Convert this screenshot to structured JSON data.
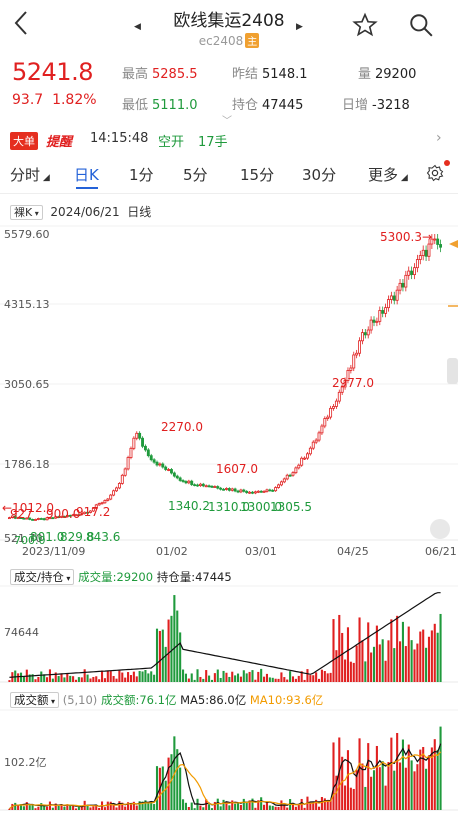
{
  "header": {
    "title": "欧线集运2408",
    "subtitle": "ec2408",
    "badge": "主"
  },
  "quote": {
    "price": "5241.8",
    "change": "93.7",
    "change_pct": "1.82%",
    "high_label": "最高",
    "high": "5285.5",
    "prev_settle_label": "昨结",
    "prev_settle": "5148.1",
    "volume_label": "量",
    "volume": "29200",
    "low_label": "最低",
    "low": "5111.0",
    "open_interest_label": "持仓",
    "open_interest": "47445",
    "daily_increase_label": "日增",
    "daily_increase": "-3218"
  },
  "alert": {
    "big_order": "大单",
    "remind": "提醒",
    "time": "14:15:48",
    "type": "空开",
    "qty": "17手"
  },
  "tabs": [
    "分时",
    "日K",
    "1分",
    "5分",
    "15分",
    "30分",
    "更多"
  ],
  "active_tab": "日K",
  "chart_info": {
    "bare_k": "裸K",
    "date": "2024/06/21",
    "period": "日线"
  },
  "price_axis": [
    "5579.60",
    "4315.13",
    "3050.65",
    "1786.18",
    "521.70"
  ],
  "date_axis": [
    "2023/11/09",
    "01/02",
    "03/01",
    "04/25",
    "06/21"
  ],
  "annotations": {
    "max": "5300.3",
    "p2270": "2270.0",
    "p1607": "1607.0",
    "p2977": "2977.0",
    "p1340": "1340.2",
    "p1310": "1310.0",
    "p1300": "1300.0",
    "p1305": "1305.5",
    "p1012": "1012.0",
    "p900": "900.0",
    "p917": "917.2",
    "p843": "843.6",
    "p829": "829.8",
    "p700": "700.0",
    "p801": "801.0",
    "p927": "927"
  },
  "vol_panel": {
    "selector": "成交/持仓",
    "vol_label": "成交量:29200",
    "oi_label": "持仓量:47445",
    "axis": "74644"
  },
  "amt_panel": {
    "selector": "成交额",
    "params": "(5,10)",
    "amt_label": "成交额:76.1亿",
    "ma5_label": "MA5:86.0亿",
    "ma10_label": "MA10:93.6亿",
    "axis": "102.2亿"
  },
  "colors": {
    "up": "#e02020",
    "down": "#1f9a3c",
    "accent": "#2462d8",
    "ma10": "#f29b00"
  },
  "icons": {
    "back": "chevron-left-icon",
    "star": "star-icon",
    "search": "search-icon",
    "settings": "gear-icon"
  },
  "chart_data": {
    "type": "candlestick",
    "period": "日线",
    "x_axis": [
      "2023/11/09",
      "01/02",
      "03/01",
      "04/25",
      "06/21"
    ],
    "y_range": [
      521.7,
      5579.6
    ],
    "close_path": [
      900,
      880,
      870,
      850,
      860,
      880,
      900,
      920,
      950,
      1000,
      1100,
      1200,
      1350,
      1700,
      2270,
      2000,
      1800,
      1700,
      1607,
      1500,
      1450,
      1420,
      1400,
      1380,
      1350,
      1330,
      1310,
      1300,
      1310,
      1305,
      1400,
      1550,
      1700,
      1900,
      2100,
      2400,
      2700,
      2977,
      3300,
      3700,
      4000,
      4100,
      4300,
      4500,
      4700,
      4900,
      5100,
      5300,
      5241.8
    ],
    "volume_latest": 29200,
    "open_interest_latest": 47445,
    "turnover_latest": "76.1亿",
    "ma5_turnover": "86.0亿",
    "ma10_turnover": "93.6亿"
  }
}
